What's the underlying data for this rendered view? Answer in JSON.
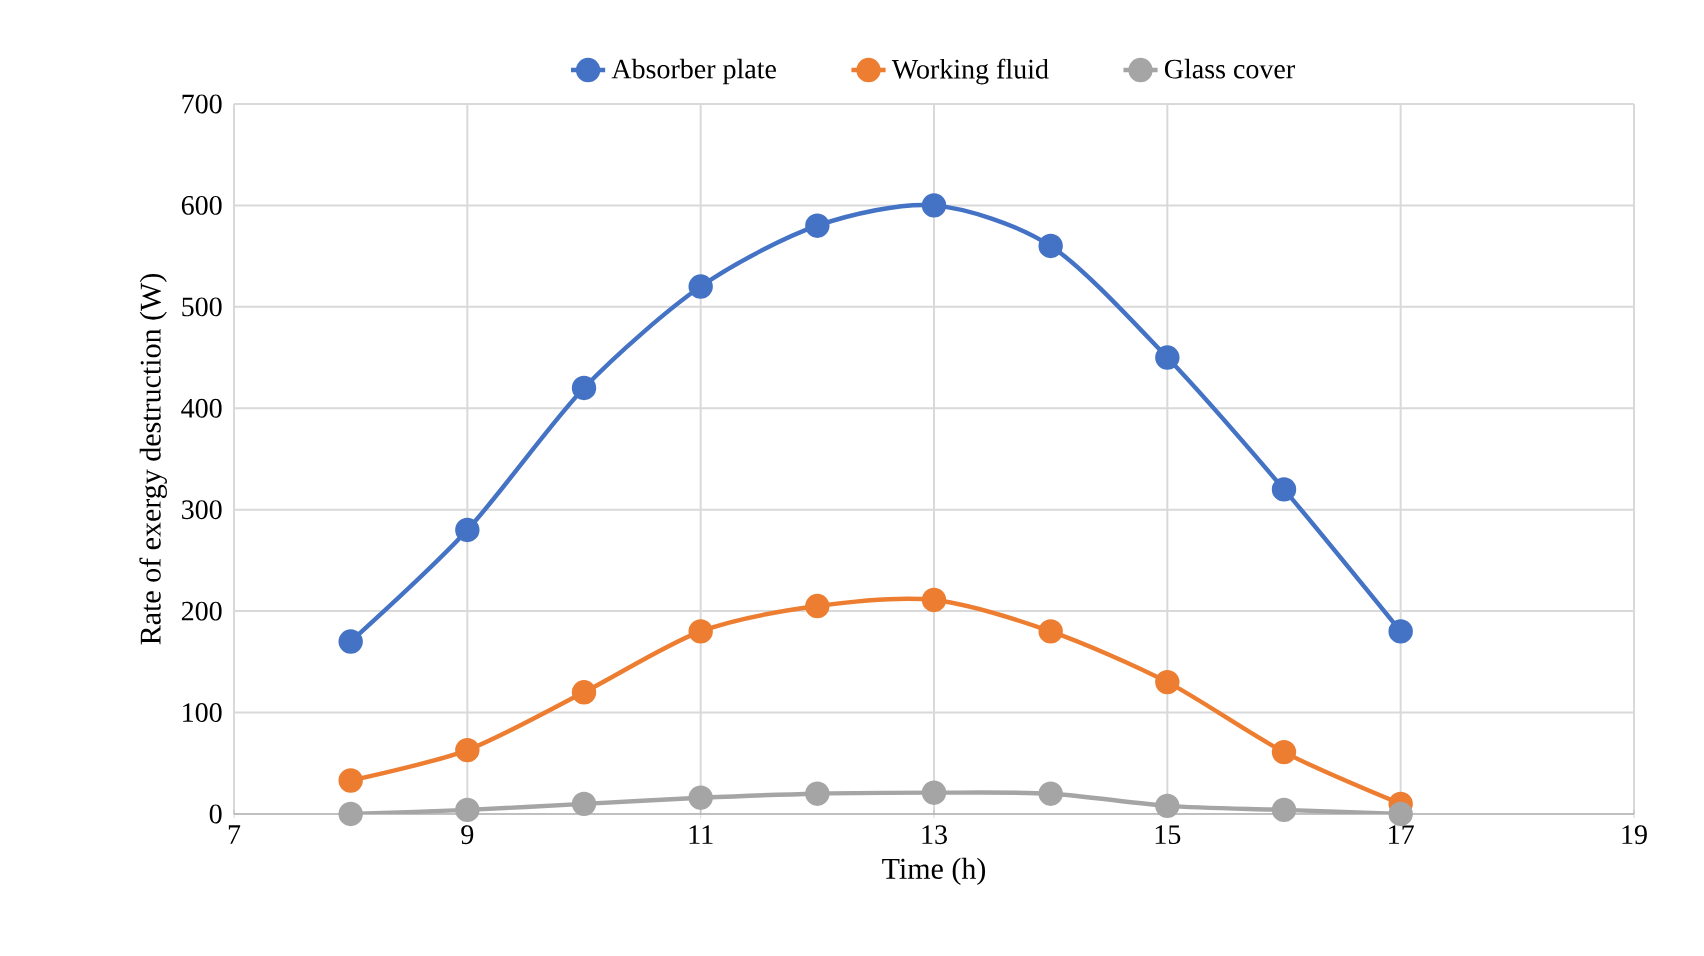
{
  "chart_data": {
    "type": "line",
    "xlabel": "Time (h)",
    "ylabel": "Rate of exergy destruction  (W)",
    "x": [
      8,
      9,
      10,
      11,
      12,
      13,
      14,
      15,
      16,
      17
    ],
    "xlim": [
      7,
      19
    ],
    "xticks": [
      7,
      9,
      11,
      13,
      15,
      17,
      19
    ],
    "ylim": [
      0,
      700
    ],
    "yticks": [
      0,
      100,
      200,
      300,
      400,
      500,
      600,
      700
    ],
    "grid": true,
    "legend": "top",
    "marker": "circle",
    "line_style": "solid",
    "series": [
      {
        "name": "Absorber plate",
        "color": "#4472c4",
        "values": [
          170,
          280,
          420,
          520,
          580,
          600,
          560,
          450,
          320,
          180
        ]
      },
      {
        "name": "Working fluid",
        "color": "#ed7d31",
        "values": [
          33,
          63,
          120,
          180,
          205,
          211,
          180,
          130,
          61,
          10
        ]
      },
      {
        "name": "Glass cover",
        "color": "#a5a5a5",
        "values": [
          0,
          4,
          10,
          16,
          20,
          21,
          20,
          8,
          4,
          0
        ]
      }
    ]
  }
}
